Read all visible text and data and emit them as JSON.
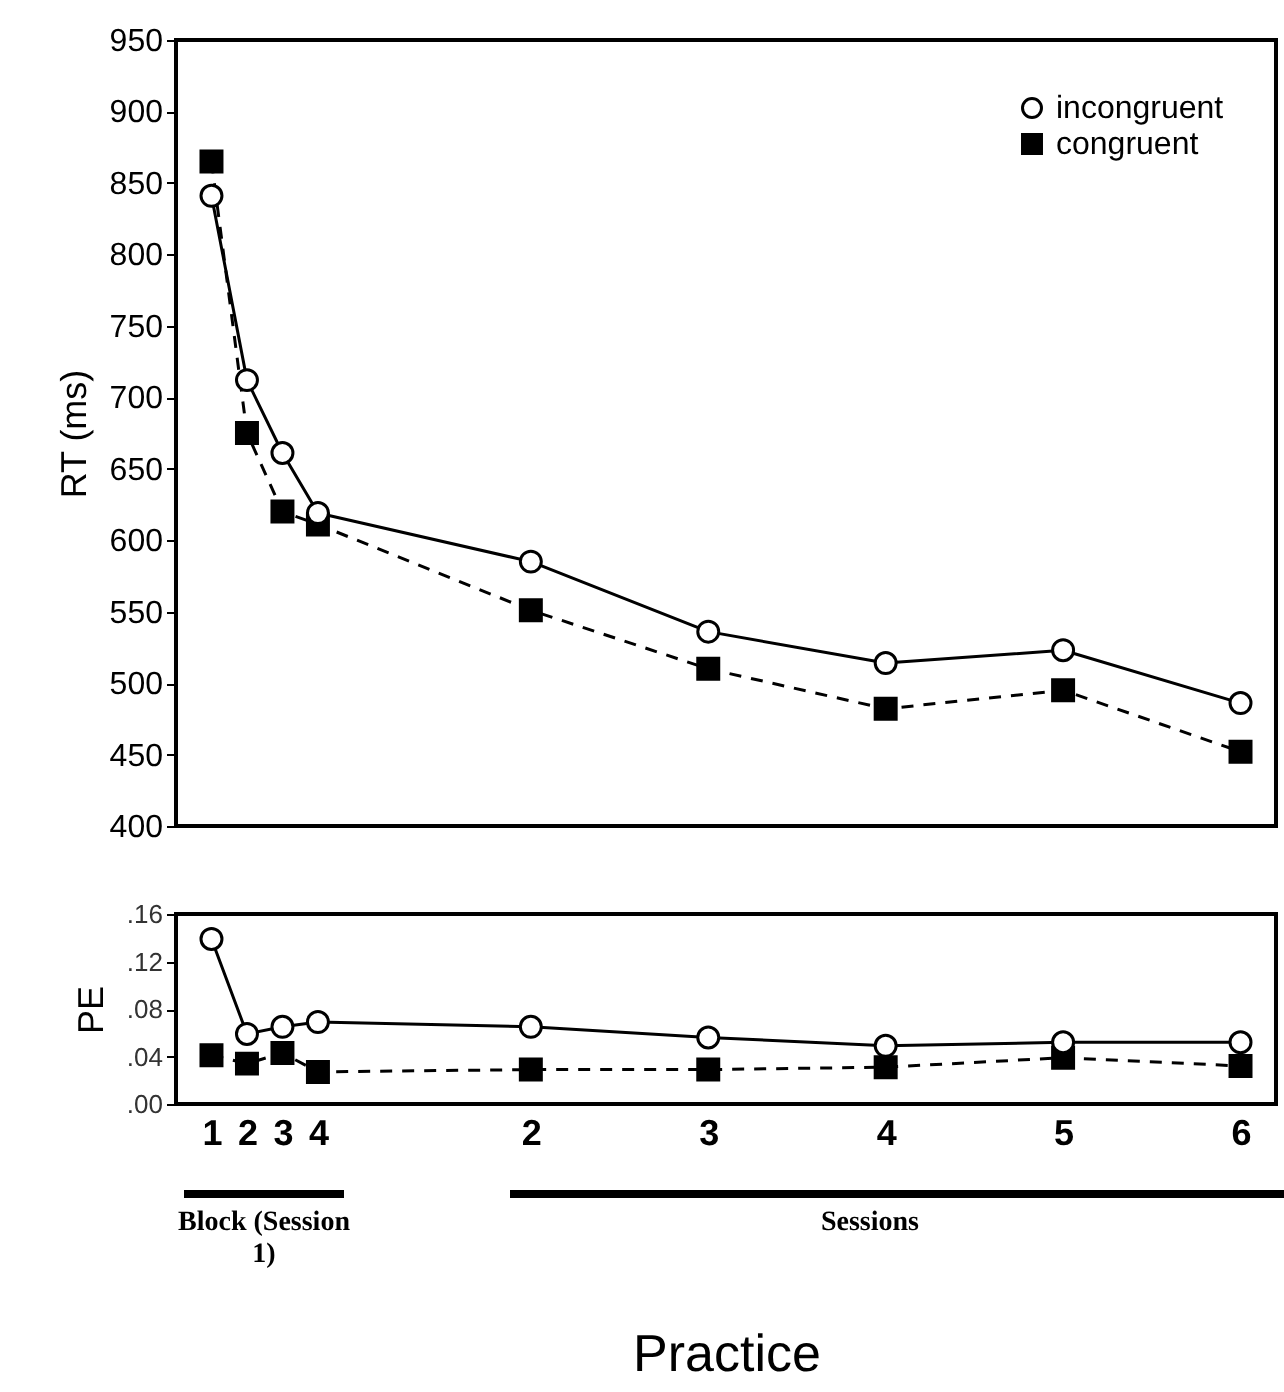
{
  "chart_data": [
    {
      "type": "line",
      "ylabel": "RT (ms)",
      "categories": [
        "1",
        "2",
        "3",
        "4",
        "2",
        "3",
        "4",
        "5",
        "6"
      ],
      "ylim": [
        400,
        950
      ],
      "yticks": [
        400,
        450,
        500,
        550,
        600,
        650,
        700,
        750,
        800,
        850,
        900,
        950
      ],
      "tick_labels": "y",
      "legend": "top right",
      "grid": false,
      "series": [
        {
          "name": "incongruent",
          "color": "#000000",
          "marker": "circle",
          "line_style": "solid",
          "values": [
            841,
            712,
            661,
            619,
            585,
            536,
            514,
            523,
            486
          ]
        },
        {
          "name": "congruent",
          "color": "#000000",
          "marker": "square",
          "line_style": "dashed",
          "values": [
            865,
            675,
            620,
            611,
            551,
            510,
            482,
            495,
            452
          ]
        }
      ]
    },
    {
      "type": "line",
      "ylabel": "PE",
      "xlabel": "Practice",
      "categories": [
        "1",
        "2",
        "3",
        "4",
        "2",
        "3",
        "4",
        "5",
        "6"
      ],
      "ylim": [
        0,
        0.16
      ],
      "yticks": [
        {
          "value": 0,
          "label": ".00"
        },
        {
          "value": 0.04,
          "label": ".04"
        },
        {
          "value": 0.08,
          "label": ".08"
        },
        {
          "value": 0.12,
          "label": ".12"
        },
        {
          "value": 0.16,
          "label": ".16"
        }
      ],
      "grid": false,
      "annotations": [
        "Block (Session 1)",
        "Sessions"
      ],
      "series": [
        {
          "color": "#000000",
          "marker": "circle",
          "line_style": "solid",
          "values": [
            0.139,
            0.059,
            0.065,
            0.069,
            0.065,
            0.056,
            0.049,
            0.052,
            0.052
          ]
        },
        {
          "color": "#000000",
          "marker": "square",
          "line_style": "dashed",
          "values": [
            0.041,
            0.034,
            0.043,
            0.027,
            0.029,
            0.029,
            0.031,
            0.039,
            0.032
          ]
        }
      ]
    }
  ]
}
